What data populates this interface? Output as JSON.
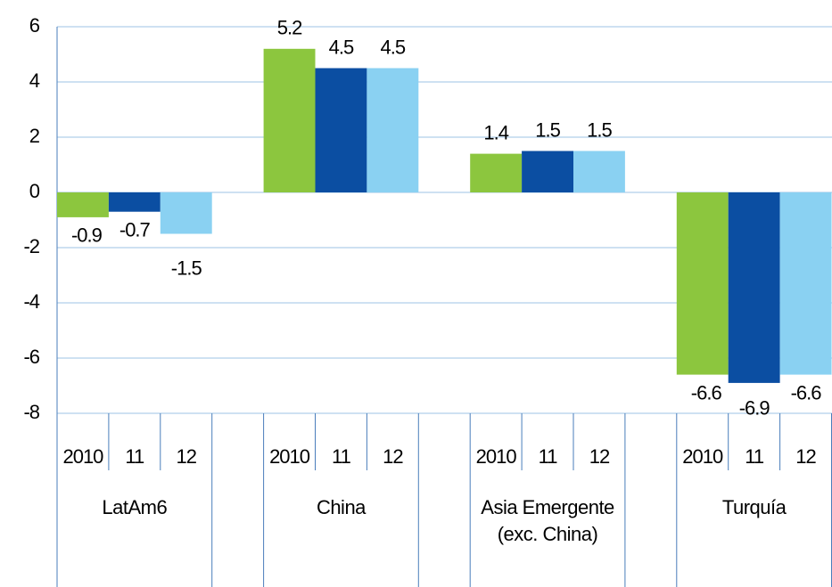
{
  "chart_data": {
    "type": "bar",
    "categories": [
      "LatAm6",
      "China",
      "Asia Emergente (exc. China)",
      "Turquía"
    ],
    "series": [
      {
        "name": "2010",
        "color": "#8cc63e",
        "values": [
          -0.9,
          5.2,
          1.4,
          -6.6
        ]
      },
      {
        "name": "11",
        "color": "#0b4ea2",
        "values": [
          -0.7,
          4.5,
          1.5,
          -6.9
        ]
      },
      {
        "name": "12",
        "color": "#8ad1f2",
        "values": [
          -1.5,
          4.5,
          1.5,
          -6.6
        ]
      }
    ],
    "ylim": [
      -8,
      6
    ],
    "yticks": [
      -8,
      -6,
      -4,
      -2,
      0,
      2,
      4,
      6
    ],
    "grid": true
  }
}
